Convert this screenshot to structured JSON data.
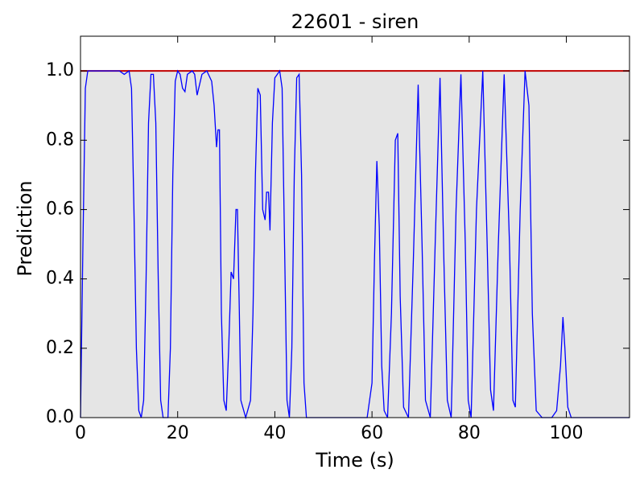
{
  "chart_data": {
    "type": "line",
    "title": "22601 - siren",
    "xlabel": "Time (s)",
    "ylabel": "Prediction",
    "xlim": [
      0,
      113
    ],
    "ylim": [
      0,
      1.1
    ],
    "xticks": [
      0,
      20,
      40,
      60,
      80,
      100
    ],
    "yticks": [
      {
        "value": 0,
        "label": "0.0"
      },
      0.2,
      0.4,
      0.6,
      0.8,
      {
        "value": 1,
        "label": "1.0"
      }
    ],
    "series": [
      {
        "color": "#c00000",
        "fill": "#e5e5e5",
        "x": [
          0,
          113
        ],
        "values": [
          1,
          1
        ]
      },
      {
        "color": "#0000ff",
        "x": [
          0,
          0.5,
          1,
          1.5,
          8,
          9,
          10,
          10.5,
          11,
          11.5,
          12,
          12.5,
          13,
          13.5,
          14,
          14.5,
          15,
          15.5,
          16,
          16.5,
          17,
          18,
          18.5,
          19,
          19.5,
          20,
          20.5,
          21,
          21.5,
          22,
          23,
          23.5,
          24,
          24.5,
          25,
          26,
          27,
          27.5,
          28,
          28.3,
          28.6,
          29,
          29.5,
          30,
          30.5,
          31,
          31.5,
          32,
          32.3,
          32.7,
          33,
          34,
          35,
          35.5,
          36,
          36.5,
          37,
          37.5,
          38,
          38.3,
          38.7,
          39,
          39.5,
          40,
          41,
          41.5,
          42,
          42.5,
          43,
          43.5,
          44,
          44.5,
          45,
          45.5,
          46,
          46.5,
          59,
          60,
          60.5,
          61,
          61.5,
          62,
          62.5,
          63.2,
          64,
          64.8,
          65.3,
          65.8,
          66.5,
          67.5,
          68.5,
          69.5,
          70.3,
          71,
          72,
          73,
          74,
          74.8,
          75.5,
          76.3,
          77.3,
          78.3,
          79.2,
          79.8,
          80.4,
          81.5,
          82.8,
          83.7,
          84.4,
          85,
          86,
          87.2,
          88.3,
          89,
          89.5,
          90.5,
          91.5,
          92.3,
          93,
          93.8,
          95,
          97,
          98,
          98.8,
          99.3,
          99.7,
          100.3,
          101,
          113
        ],
        "values": [
          0.0,
          0.5,
          0.95,
          1.0,
          1.0,
          0.99,
          1.0,
          0.95,
          0.6,
          0.2,
          0.02,
          0.0,
          0.05,
          0.4,
          0.85,
          0.99,
          0.99,
          0.85,
          0.4,
          0.05,
          0.0,
          0.0,
          0.2,
          0.7,
          0.97,
          1.0,
          0.99,
          0.95,
          0.94,
          0.99,
          1.0,
          0.99,
          0.93,
          0.96,
          0.99,
          1.0,
          0.97,
          0.9,
          0.78,
          0.83,
          0.83,
          0.3,
          0.05,
          0.02,
          0.2,
          0.42,
          0.4,
          0.6,
          0.6,
          0.3,
          0.05,
          0.0,
          0.05,
          0.3,
          0.7,
          0.95,
          0.93,
          0.6,
          0.57,
          0.65,
          0.65,
          0.54,
          0.85,
          0.98,
          1.0,
          0.95,
          0.5,
          0.05,
          0.0,
          0.2,
          0.7,
          0.98,
          0.99,
          0.7,
          0.1,
          0.0,
          0.0,
          0.1,
          0.45,
          0.74,
          0.55,
          0.15,
          0.02,
          0.0,
          0.3,
          0.8,
          0.82,
          0.35,
          0.03,
          0.0,
          0.45,
          0.96,
          0.5,
          0.05,
          0.0,
          0.5,
          0.98,
          0.45,
          0.05,
          0.0,
          0.6,
          0.99,
          0.5,
          0.05,
          0.0,
          0.6,
          1.0,
          0.5,
          0.08,
          0.02,
          0.5,
          0.99,
          0.5,
          0.05,
          0.03,
          0.6,
          1.0,
          0.9,
          0.3,
          0.02,
          0.0,
          0.0,
          0.02,
          0.15,
          0.29,
          0.2,
          0.03,
          0.0,
          0.0
        ]
      }
    ]
  }
}
